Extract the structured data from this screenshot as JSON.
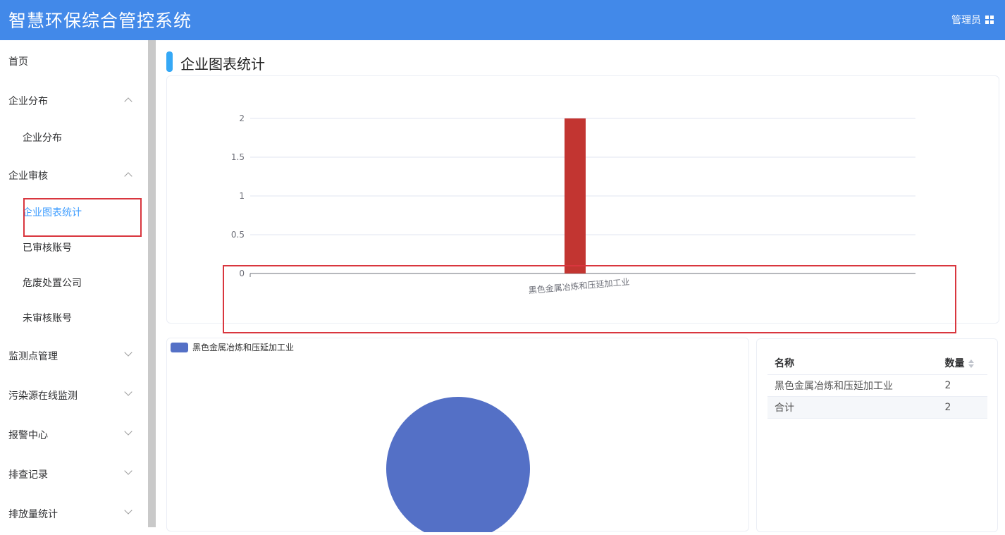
{
  "header": {
    "title": "智慧环保综合管控系统",
    "user": "管理员"
  },
  "sidebar": {
    "items": [
      {
        "label": "首页"
      },
      {
        "label": "企业分布"
      },
      {
        "label": "企业分布"
      },
      {
        "label": "企业审核"
      },
      {
        "label": "企业图表统计"
      },
      {
        "label": "已审核账号"
      },
      {
        "label": "危废处置公司"
      },
      {
        "label": "未审核账号"
      },
      {
        "label": "监测点管理"
      },
      {
        "label": "污染源在线监测"
      },
      {
        "label": "报警中心"
      },
      {
        "label": "排查记录"
      },
      {
        "label": "排放量统计"
      }
    ]
  },
  "main": {
    "page_title": "企业图表统计"
  },
  "chart_data": [
    {
      "type": "bar",
      "categories": [
        "黑色金属冶炼和压延加工业"
      ],
      "values": [
        2
      ],
      "ylim": [
        0,
        2
      ],
      "yticks": [
        "0",
        "0.5",
        "1",
        "1.5",
        "2"
      ],
      "color": "#c23531",
      "grid": true
    },
    {
      "type": "pie",
      "labels": [
        "黑色金属冶炼和压延加工业"
      ],
      "values": [
        2
      ],
      "color": "#5470c6",
      "legend": "top-left"
    }
  ],
  "table": {
    "columns": [
      "名称",
      "数量"
    ],
    "rows": [
      [
        "黑色金属冶炼和压延加工业",
        "2"
      ],
      [
        "合计",
        "2"
      ]
    ]
  },
  "colors": {
    "header": "#4289e9",
    "active": "#409eff",
    "highlight": "#d9363e"
  }
}
